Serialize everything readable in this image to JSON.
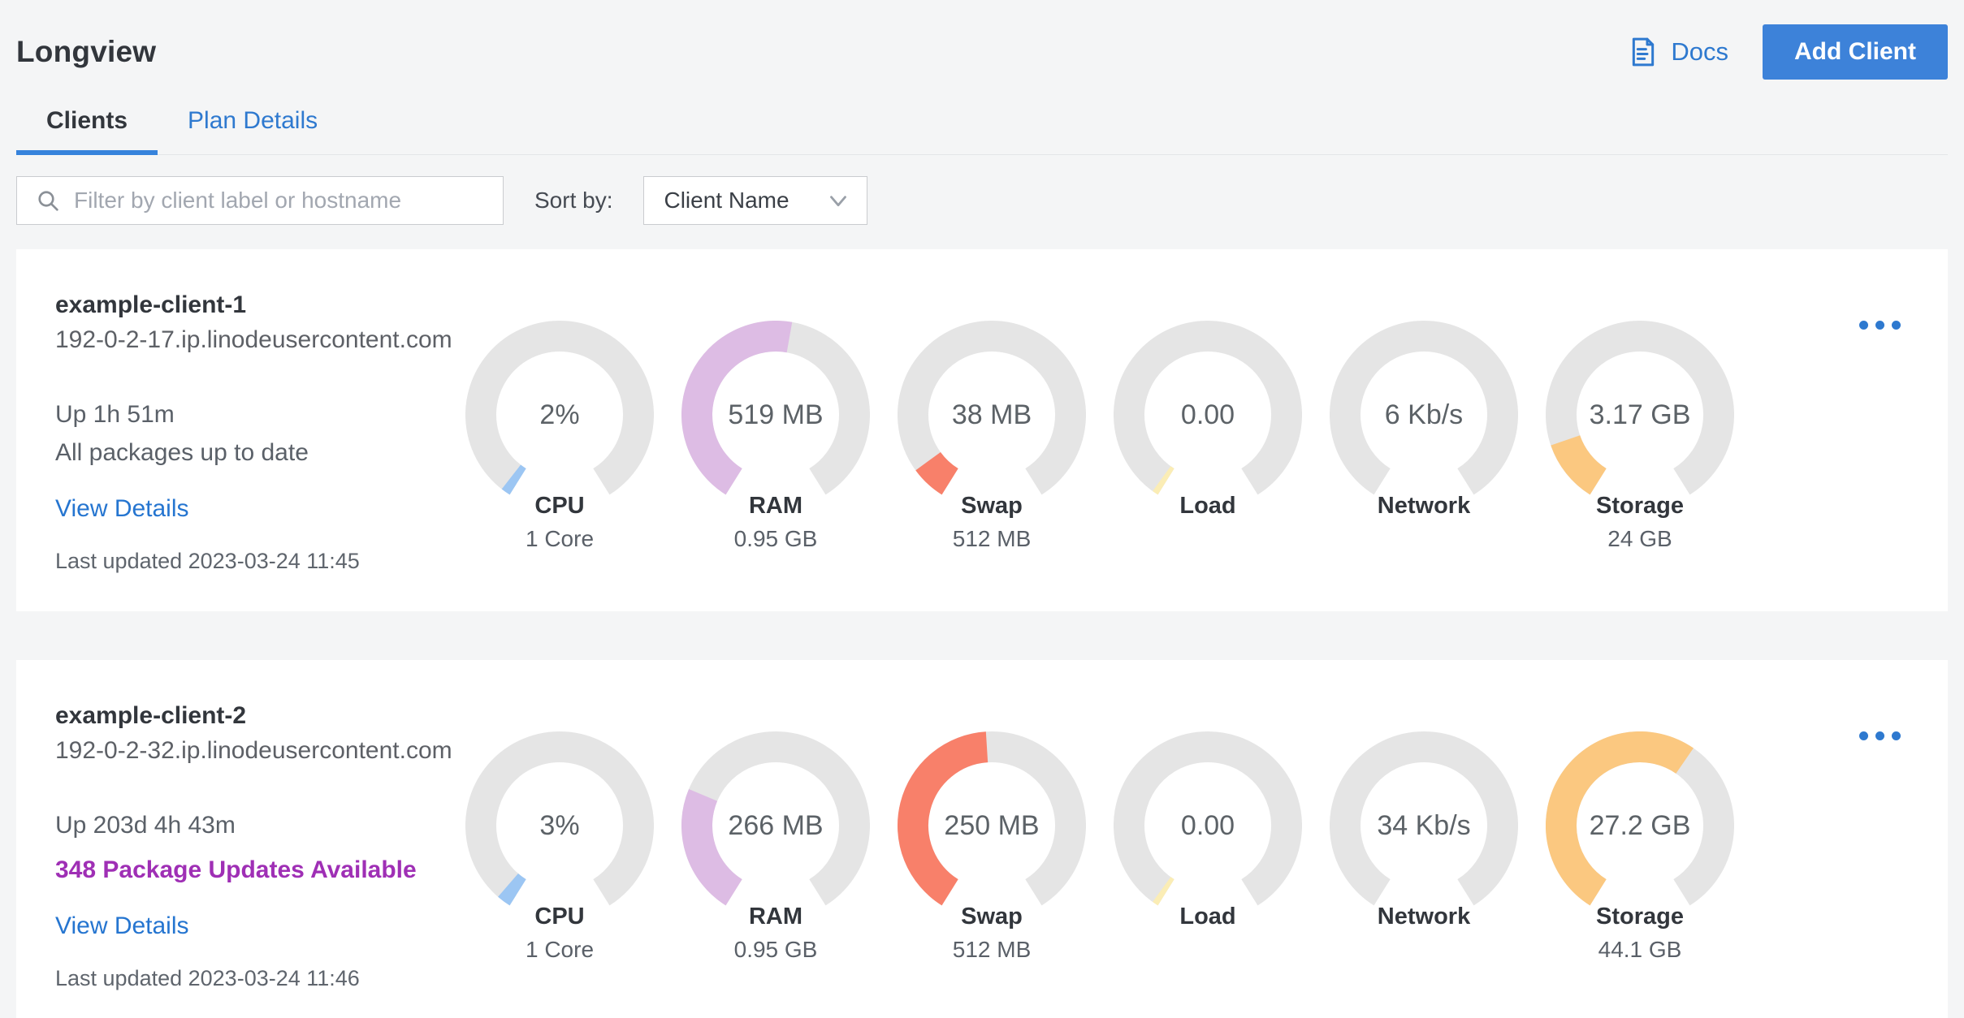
{
  "header": {
    "title": "Longview",
    "docs_label": "Docs",
    "add_client_label": "Add Client"
  },
  "tabs": {
    "clients": "Clients",
    "plan_details": "Plan Details"
  },
  "toolbar": {
    "filter_placeholder": "Filter by client label or hostname",
    "sort_by_label": "Sort by:",
    "sort_selected": "Client Name"
  },
  "colors": {
    "accent_blue": "#3683dc",
    "link_blue": "#2575d0",
    "package_alert_purple": "#9f2fb5",
    "gauge_track": "#e5e5e5"
  },
  "clients": [
    {
      "name": "example-client-1",
      "hostname": "192-0-2-17.ip.linodeusercontent.com",
      "uptime": "Up 1h 51m",
      "packages_status": "All packages up to date",
      "packages_alert": false,
      "view_details_label": "View Details",
      "last_updated": "Last updated 2023-03-24 11:45",
      "gauges": [
        {
          "metric": "CPU",
          "value": "2%",
          "sub": "1 Core",
          "percent": 2,
          "color": "#9cc6f3"
        },
        {
          "metric": "RAM",
          "value": "519 MB",
          "sub": "0.95 GB",
          "percent": 53.4,
          "color": "#ddbce4"
        },
        {
          "metric": "Swap",
          "value": "38 MB",
          "sub": "512 MB",
          "percent": 7.4,
          "color": "#f8806a"
        },
        {
          "metric": "Load",
          "value": "0.00",
          "sub": "",
          "percent": 1.3,
          "color": "#fbedb5"
        },
        {
          "metric": "Network",
          "value": "6 Kb/s",
          "sub": "",
          "percent": 0,
          "color": "#9cc6f3"
        },
        {
          "metric": "Storage",
          "value": "3.17 GB",
          "sub": "24 GB",
          "percent": 13.2,
          "color": "#fbc880"
        }
      ]
    },
    {
      "name": "example-client-2",
      "hostname": "192-0-2-32.ip.linodeusercontent.com",
      "uptime": "Up 203d 4h 43m",
      "packages_status": "348 Package Updates Available",
      "packages_alert": true,
      "view_details_label": "View Details",
      "last_updated": "Last updated 2023-03-24 11:46",
      "gauges": [
        {
          "metric": "CPU",
          "value": "3%",
          "sub": "1 Core",
          "percent": 3,
          "color": "#9cc6f3"
        },
        {
          "metric": "RAM",
          "value": "266 MB",
          "sub": "0.95 GB",
          "percent": 27.3,
          "color": "#ddbce4"
        },
        {
          "metric": "Swap",
          "value": "250 MB",
          "sub": "512 MB",
          "percent": 48.8,
          "color": "#f8806a"
        },
        {
          "metric": "Load",
          "value": "0.00",
          "sub": "",
          "percent": 1.3,
          "color": "#fbedb5"
        },
        {
          "metric": "Network",
          "value": "34 Kb/s",
          "sub": "",
          "percent": 0,
          "color": "#9cc6f3"
        },
        {
          "metric": "Storage",
          "value": "27.2 GB",
          "sub": "44.1 GB",
          "percent": 61.7,
          "color": "#fbc880"
        }
      ]
    }
  ]
}
